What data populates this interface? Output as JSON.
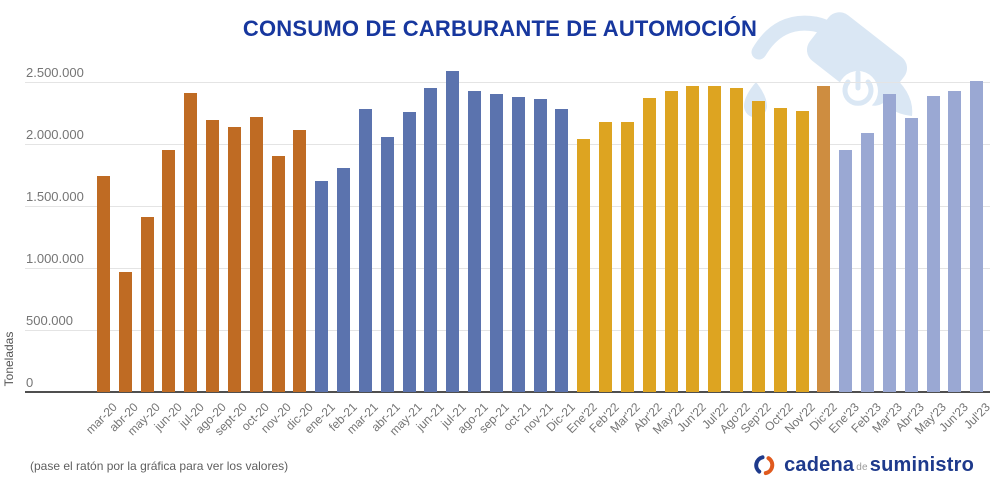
{
  "title": "CONSUMO DE CARBURANTE DE AUTOMOCIÓN",
  "footer": {
    "note": "(pase el ratón por la gráfica para ver los valores)",
    "logo": {
      "word1": "cadena",
      "word2": "de",
      "word3": "suministro"
    }
  },
  "colors": {
    "title_text": "#17379E",
    "axis_text": "#757575",
    "ylabel_text": "#555555",
    "note_text": "#5F5F5F",
    "gridline": "#E4E4E4",
    "axis_line": "#4F4F4F",
    "watermark": "#DAE7F4",
    "logo_blue": "#1E3A8C",
    "logo_orange": "#E05A1E",
    "bar_2020": "#BF6B23",
    "bar_2021": "#5B73AE",
    "bar_2022": "#DDA421",
    "bar_dic22": "#CE8D40",
    "bar_2023": "#9AA8D3"
  },
  "chart_data": {
    "type": "bar",
    "title": "CONSUMO DE CARBURANTE DE AUTOMOCIÓN",
    "xlabel": "",
    "ylabel": "Toneladas",
    "ylim": [
      0,
      2700000
    ],
    "grid": true,
    "legend": "none",
    "y_ticks": [
      {
        "label": "2.500.000",
        "value": 2500000
      },
      {
        "label": "2.000.000",
        "value": 2000000
      },
      {
        "label": "1.500.000",
        "value": 1500000
      },
      {
        "label": "1.000.000",
        "value": 1000000
      },
      {
        "label": "500.000",
        "value": 500000
      },
      {
        "label": "0",
        "value": 0
      }
    ],
    "points": [
      {
        "label": "mar-20",
        "value": 1740000,
        "group": "2020"
      },
      {
        "label": "abr-20",
        "value": 970000,
        "group": "2020"
      },
      {
        "label": "may-20",
        "value": 1410000,
        "group": "2020"
      },
      {
        "label": "jun-20",
        "value": 1950000,
        "group": "2020"
      },
      {
        "label": "jul-20",
        "value": 2410000,
        "group": "2020"
      },
      {
        "label": "ago-20",
        "value": 2190000,
        "group": "2020"
      },
      {
        "label": "sept-20",
        "value": 2140000,
        "group": "2020"
      },
      {
        "label": "oct-20",
        "value": 2220000,
        "group": "2020"
      },
      {
        "label": "nov-20",
        "value": 1900000,
        "group": "2020"
      },
      {
        "label": "dic-20",
        "value": 2110000,
        "group": "2020"
      },
      {
        "label": "ene-21",
        "value": 1700000,
        "group": "2021"
      },
      {
        "label": "feb-21",
        "value": 1810000,
        "group": "2021"
      },
      {
        "label": "mar-21",
        "value": 2280000,
        "group": "2021"
      },
      {
        "label": "abr-21",
        "value": 2060000,
        "group": "2021"
      },
      {
        "label": "may-21",
        "value": 2260000,
        "group": "2021"
      },
      {
        "label": "jun-21",
        "value": 2450000,
        "group": "2021"
      },
      {
        "label": "jul-21",
        "value": 2590000,
        "group": "2021"
      },
      {
        "label": "ago-21",
        "value": 2430000,
        "group": "2021"
      },
      {
        "label": "sep-21",
        "value": 2400000,
        "group": "2021"
      },
      {
        "label": "oct-21",
        "value": 2380000,
        "group": "2021"
      },
      {
        "label": "nov-21",
        "value": 2360000,
        "group": "2021"
      },
      {
        "label": "Dic-21",
        "value": 2280000,
        "group": "2021"
      },
      {
        "label": "Ene'22",
        "value": 2040000,
        "group": "2022"
      },
      {
        "label": "Feb'22",
        "value": 2180000,
        "group": "2022"
      },
      {
        "label": "Mar'22",
        "value": 2180000,
        "group": "2022"
      },
      {
        "label": "Abr'22",
        "value": 2370000,
        "group": "2022"
      },
      {
        "label": "May'22",
        "value": 2430000,
        "group": "2022"
      },
      {
        "label": "Jun'22",
        "value": 2470000,
        "group": "2022"
      },
      {
        "label": "Jul'22",
        "value": 2470000,
        "group": "2022"
      },
      {
        "label": "Ago'22",
        "value": 2450000,
        "group": "2022"
      },
      {
        "label": "Sep'22",
        "value": 2350000,
        "group": "2022"
      },
      {
        "label": "Oct'22",
        "value": 2290000,
        "group": "2022"
      },
      {
        "label": "Nov'22",
        "value": 2270000,
        "group": "2022"
      },
      {
        "label": "Dic'22",
        "value": 2470000,
        "group": "dic22"
      },
      {
        "label": "Ene'23",
        "value": 1950000,
        "group": "2023"
      },
      {
        "label": "Feb'23",
        "value": 2090000,
        "group": "2023"
      },
      {
        "label": "Mar'23",
        "value": 2400000,
        "group": "2023"
      },
      {
        "label": "Abr'23",
        "value": 2210000,
        "group": "2023"
      },
      {
        "label": "May'23",
        "value": 2390000,
        "group": "2023"
      },
      {
        "label": "Jun'23",
        "value": 2430000,
        "group": "2023"
      },
      {
        "label": "Jul'23",
        "value": 2510000,
        "group": "2023"
      }
    ]
  }
}
